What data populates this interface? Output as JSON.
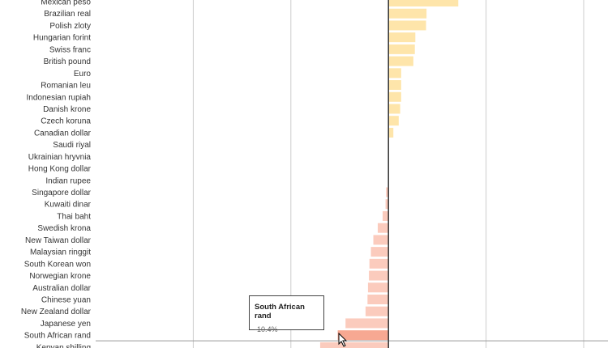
{
  "chart_data": {
    "type": "bar",
    "orientation": "horizontal",
    "categories": [
      "Mexican peso",
      "Brazilian real",
      "Polish zloty",
      "Hungarian forint",
      "Swiss franc",
      "British pound",
      "Euro",
      "Romanian leu",
      "Indonesian rupiah",
      "Danish krone",
      "Czech koruna",
      "Canadian dollar",
      "Saudi riyal",
      "Ukrainian hryvnia",
      "Hong Kong dollar",
      "Indian rupee",
      "Singapore dollar",
      "Kuwaiti dinar",
      "Thai baht",
      "Swedish krona",
      "New Taiwan dollar",
      "Malaysian ringgit",
      "South Korean won",
      "Norwegian krone",
      "Australian dollar",
      "Chinese yuan",
      "New Zealand dollar",
      "Japanese yen",
      "South African rand",
      "Kenyan shilling"
    ],
    "values": [
      14.3,
      7.8,
      7.7,
      5.5,
      5.4,
      5.1,
      2.6,
      2.6,
      2.6,
      2.4,
      2.1,
      1.0,
      0,
      0,
      0,
      0,
      -0.5,
      -0.6,
      -1.2,
      -2.2,
      -3.1,
      -3.6,
      -3.9,
      -4.0,
      -4.2,
      -4.3,
      -4.7,
      -8.8,
      -10.4,
      -14.0
    ],
    "xlim": [
      -60,
      40
    ],
    "grid_x": [
      -40,
      -20,
      0,
      20,
      40
    ],
    "grid": true,
    "colors": {
      "positive": "#fee5aa",
      "negative": "#fbcbbd",
      "highlight": "#f7a892",
      "axis": "#333333",
      "grid": "#cccccc"
    }
  },
  "tooltip": {
    "title": "South African rand",
    "value": "-10.4%",
    "highlighted_index": 28
  }
}
